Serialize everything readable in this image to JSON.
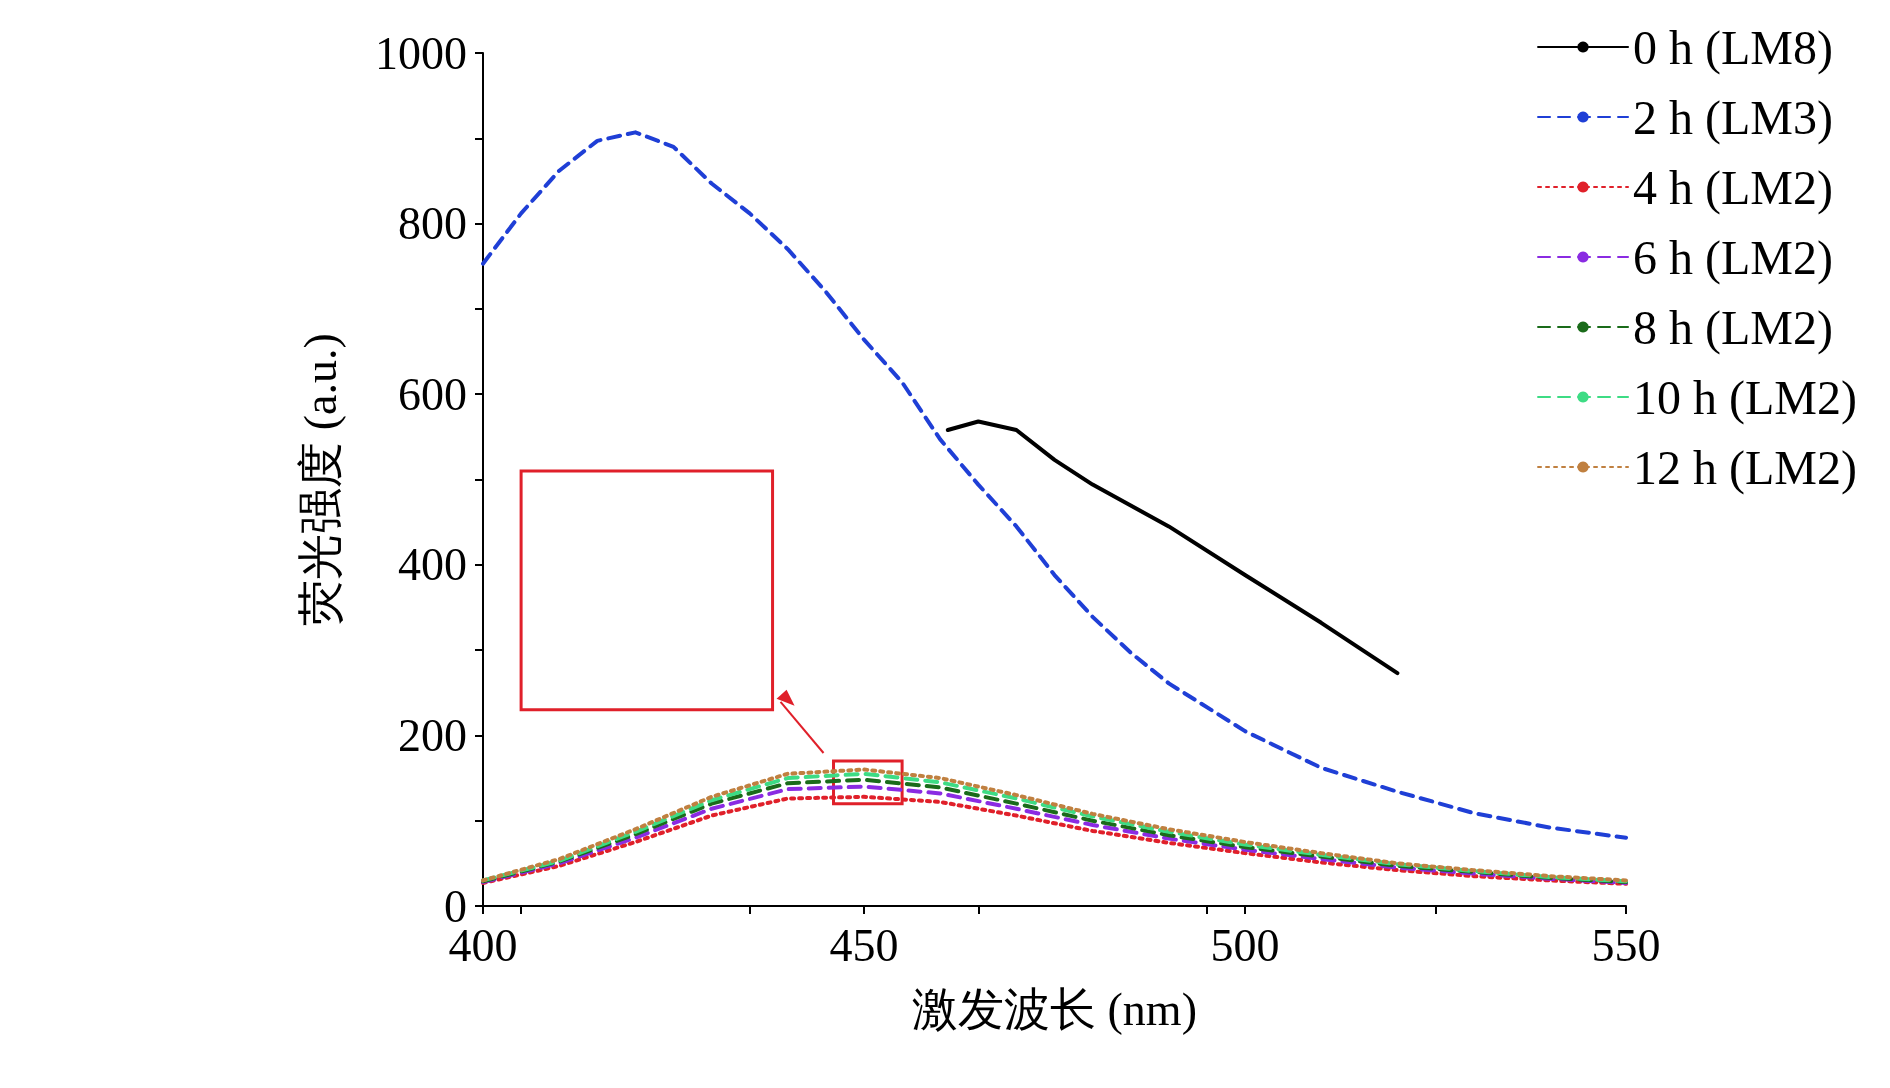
{
  "chart_data": {
    "type": "line",
    "xlabel": "激发波长 (nm)",
    "ylabel": "荧光强度 (a.u.)",
    "xlim": [
      400,
      550
    ],
    "xticks": [
      400,
      450,
      500,
      550
    ],
    "ylim": [
      0,
      1000
    ],
    "yticks": [
      0,
      200,
      400,
      600,
      800,
      1000
    ],
    "grid": false,
    "legend": "top right",
    "marker": "none",
    "series": [
      {
        "name": "0 h (LM8)",
        "color": "#000000",
        "line_style": "solid",
        "x": [
          461,
          465,
          470,
          475,
          480,
          490,
          500,
          510,
          520
        ],
        "values": [
          558,
          568,
          558,
          523,
          494,
          445,
          388,
          332,
          273
        ]
      },
      {
        "name": "2 h (LM3)",
        "color": "#1f3fd6",
        "line_style": "dashed",
        "x": [
          400,
          405,
          410,
          415,
          420,
          425,
          430,
          435,
          440,
          445,
          450,
          455,
          460,
          465,
          470,
          475,
          480,
          485,
          490,
          500,
          510,
          520,
          530,
          540,
          550
        ],
        "values": [
          753,
          812,
          862,
          897,
          907,
          890,
          847,
          812,
          770,
          720,
          664,
          614,
          547,
          494,
          445,
          388,
          339,
          297,
          261,
          205,
          162,
          134,
          109,
          92,
          80
        ]
      },
      {
        "name": "4 h (LM2)",
        "color": "#e0202a",
        "line_style": "dotted",
        "x": [
          400,
          410,
          420,
          430,
          440,
          450,
          460,
          470,
          480,
          490,
          500,
          510,
          520,
          530,
          540,
          550
        ],
        "values": [
          27,
          47,
          75,
          106,
          126,
          128,
          122,
          106,
          88,
          74,
          62,
          51,
          42,
          35,
          30,
          26
        ]
      },
      {
        "name": "6 h (LM2)",
        "color": "#8a2be2",
        "line_style": "dashed",
        "x": [
          400,
          410,
          420,
          430,
          440,
          450,
          460,
          470,
          480,
          490,
          500,
          510,
          520,
          530,
          540,
          550
        ],
        "values": [
          28,
          50,
          80,
          114,
          137,
          140,
          132,
          114,
          95,
          79,
          66,
          55,
          45,
          38,
          32,
          27
        ]
      },
      {
        "name": "8 h (LM2)",
        "color": "#1a6b1a",
        "line_style": "dashed",
        "x": [
          400,
          410,
          420,
          430,
          440,
          450,
          460,
          470,
          480,
          490,
          500,
          510,
          520,
          530,
          540,
          550
        ],
        "values": [
          29,
          52,
          84,
          120,
          144,
          148,
          139,
          120,
          100,
          83,
          69,
          58,
          47,
          40,
          33,
          28
        ]
      },
      {
        "name": "10 h (LM2)",
        "color": "#3ddc84",
        "line_style": "dashed",
        "x": [
          400,
          410,
          420,
          430,
          440,
          450,
          460,
          470,
          480,
          490,
          500,
          510,
          520,
          530,
          540,
          550
        ],
        "values": [
          30,
          53,
          87,
          124,
          150,
          155,
          145,
          126,
          105,
          87,
          72,
          60,
          49,
          41,
          34,
          29
        ]
      },
      {
        "name": "12 h (LM2)",
        "color": "#c08040",
        "line_style": "dotted",
        "x": [
          400,
          410,
          420,
          430,
          440,
          450,
          460,
          470,
          480,
          490,
          500,
          510,
          520,
          530,
          540,
          550
        ],
        "values": [
          30,
          55,
          90,
          128,
          155,
          160,
          150,
          130,
          108,
          90,
          75,
          62,
          50,
          42,
          35,
          30
        ]
      }
    ]
  }
}
